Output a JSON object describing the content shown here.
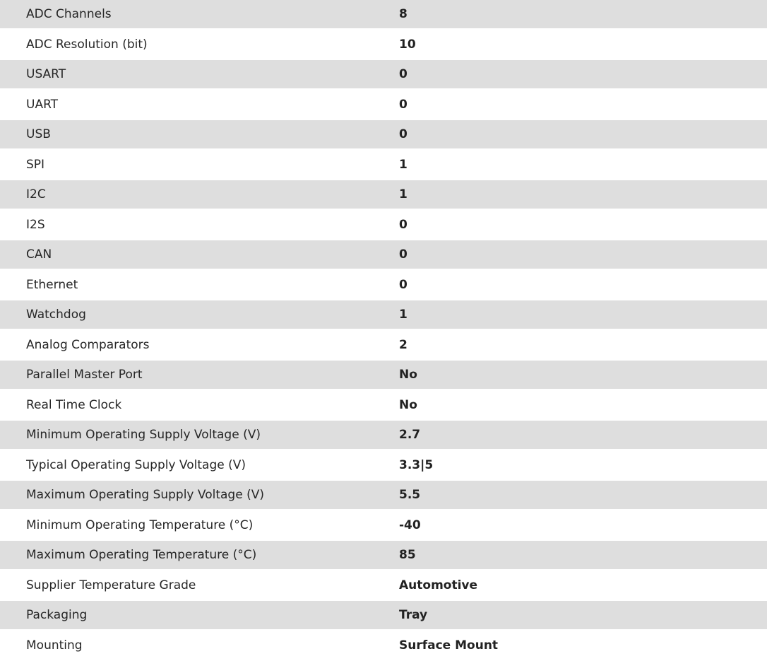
{
  "specs": [
    {
      "label": "ADC Channels",
      "value": "8"
    },
    {
      "label": "ADC Resolution (bit)",
      "value": "10"
    },
    {
      "label": "USART",
      "value": "0"
    },
    {
      "label": "UART",
      "value": "0"
    },
    {
      "label": "USB",
      "value": "0"
    },
    {
      "label": "SPI",
      "value": "1"
    },
    {
      "label": "I2C",
      "value": "1"
    },
    {
      "label": "I2S",
      "value": "0"
    },
    {
      "label": "CAN",
      "value": "0"
    },
    {
      "label": "Ethernet",
      "value": "0"
    },
    {
      "label": "Watchdog",
      "value": "1"
    },
    {
      "label": "Analog Comparators",
      "value": "2"
    },
    {
      "label": "Parallel Master Port",
      "value": "No"
    },
    {
      "label": "Real Time Clock",
      "value": "No"
    },
    {
      "label": "Minimum Operating Supply Voltage (V)",
      "value": "2.7"
    },
    {
      "label": "Typical Operating Supply Voltage (V)",
      "value": "3.3|5"
    },
    {
      "label": "Maximum Operating Supply Voltage (V)",
      "value": "5.5"
    },
    {
      "label": "Minimum Operating Temperature (°C)",
      "value": "-40"
    },
    {
      "label": "Maximum Operating Temperature (°C)",
      "value": "85"
    },
    {
      "label": "Supplier Temperature Grade",
      "value": "Automotive"
    },
    {
      "label": "Packaging",
      "value": "Tray"
    },
    {
      "label": "Mounting",
      "value": "Surface Mount"
    }
  ],
  "colors": {
    "stripe": "#dedede",
    "text": "#262626"
  }
}
